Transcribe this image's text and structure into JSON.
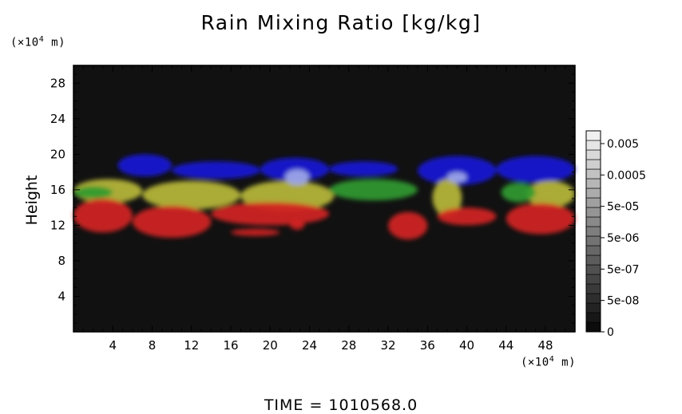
{
  "chart_data": {
    "type": "heatmap",
    "title": "Rain Mixing Ratio [kg/kg]",
    "ylabel": "Height",
    "xlabel": "",
    "x_unit": {
      "prefix": "(×10",
      "exp": "4",
      "suffix": " m)"
    },
    "y_unit": {
      "prefix": "(×10",
      "exp": "4",
      "suffix": " m)"
    },
    "xlim": [
      0,
      51
    ],
    "ylim": [
      0,
      30
    ],
    "x_ticks": [
      4,
      8,
      12,
      16,
      20,
      24,
      28,
      32,
      36,
      40,
      44,
      48
    ],
    "y_ticks": [
      4,
      8,
      12,
      16,
      20,
      24,
      28
    ],
    "background_color": "#111111",
    "colorbar": {
      "labels": [
        "0.005",
        "0.0005",
        "5e-05",
        "5e-06",
        "5e-07",
        "5e-08",
        "0"
      ],
      "segments": 21
    },
    "layers": [
      {
        "color": "#1a1ad6",
        "regions": [
          {
            "x": [
              4.5,
              10.0
            ],
            "y": [
              17.5,
              20.0
            ]
          },
          {
            "x": [
              10.0,
              19.0
            ],
            "y": [
              17.2,
              19.2
            ]
          },
          {
            "x": [
              19.0,
              26.0
            ],
            "y": [
              17.0,
              19.6
            ]
          },
          {
            "x": [
              26.0,
              33.0
            ],
            "y": [
              17.5,
              19.2
            ]
          },
          {
            "x": [
              35.0,
              43.0
            ],
            "y": [
              16.5,
              19.8
            ]
          },
          {
            "x": [
              43.0,
              51.0
            ],
            "y": [
              16.8,
              19.8
            ]
          }
        ]
      },
      {
        "color": "#b9b93a",
        "regions": [
          {
            "x": [
              0.0,
              7.0
            ],
            "y": [
              14.5,
              17.2
            ]
          },
          {
            "x": [
              7.0,
              17.0
            ],
            "y": [
              13.8,
              17.0
            ]
          },
          {
            "x": [
              17.0,
              26.5
            ],
            "y": [
              13.6,
              17.0
            ]
          },
          {
            "x": [
              36.5,
              39.5
            ],
            "y": [
              13.0,
              17.2
            ]
          },
          {
            "x": [
              46.0,
              51.0
            ],
            "y": [
              14.0,
              17.0
            ]
          }
        ]
      },
      {
        "color": "#2f9a2f",
        "regions": [
          {
            "x": [
              0.0,
              4.0
            ],
            "y": [
              15.0,
              16.4
            ]
          },
          {
            "x": [
              26.0,
              35.0
            ],
            "y": [
              14.8,
              17.2
            ]
          },
          {
            "x": [
              43.5,
              47.0
            ],
            "y": [
              14.6,
              16.8
            ]
          }
        ]
      },
      {
        "color": "#d42222",
        "regions": [
          {
            "x": [
              0.0,
              6.0
            ],
            "y": [
              11.2,
              15.0
            ]
          },
          {
            "x": [
              6.0,
              14.0
            ],
            "y": [
              10.6,
              14.2
            ]
          },
          {
            "x": [
              14.0,
              26.0
            ],
            "y": [
              12.0,
              14.6
            ]
          },
          {
            "x": [
              16.0,
              21.0
            ],
            "y": [
              10.8,
              11.6
            ]
          },
          {
            "x": [
              22.0,
              23.5
            ],
            "y": [
              11.5,
              12.6
            ]
          },
          {
            "x": [
              32.0,
              36.0
            ],
            "y": [
              10.4,
              13.5
            ]
          },
          {
            "x": [
              37.0,
              43.0
            ],
            "y": [
              12.0,
              14.0
            ]
          },
          {
            "x": [
              44.0,
              51.0
            ],
            "y": [
              11.0,
              14.5
            ]
          }
        ]
      },
      {
        "color": "#9fa9e8",
        "regions": [
          {
            "x": [
              21.5,
              24.0
            ],
            "y": [
              16.5,
              18.3
            ]
          },
          {
            "x": [
              38.0,
              40.0
            ],
            "y": [
              16.8,
              18.0
            ]
          }
        ]
      }
    ]
  },
  "footer": {
    "time_label": "TIME = 1010568.0"
  }
}
